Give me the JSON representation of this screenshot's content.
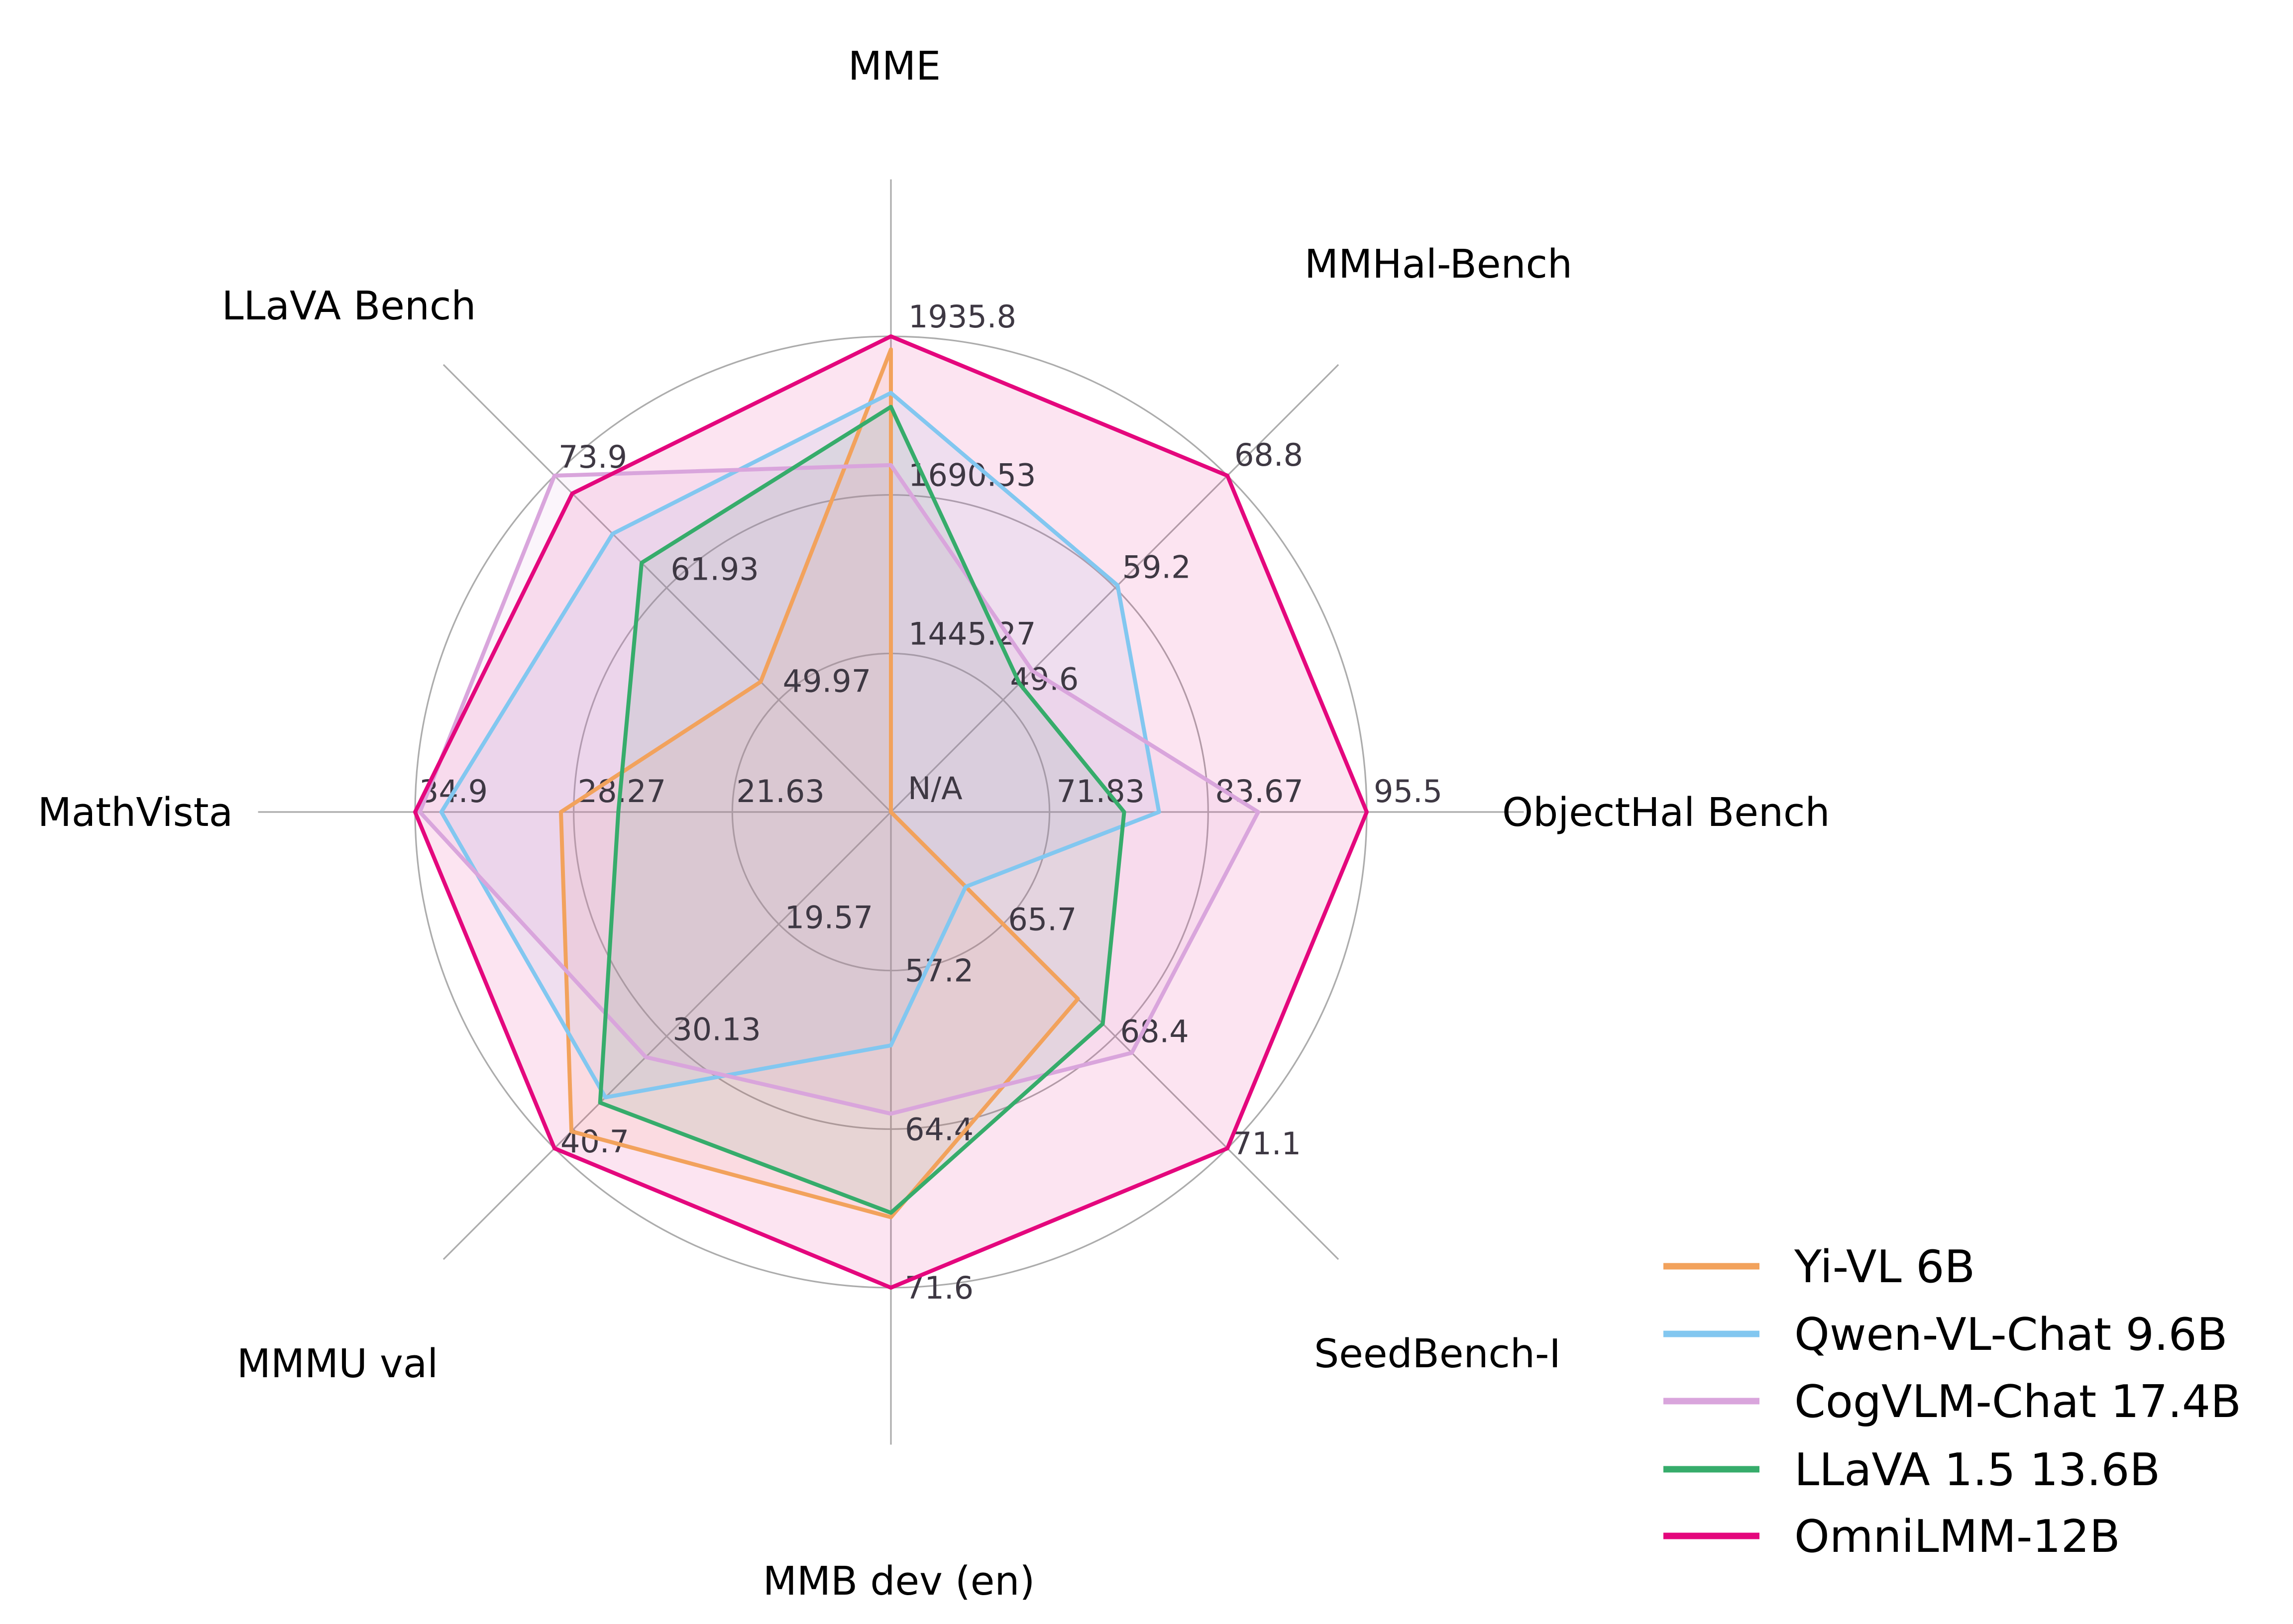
{
  "chart_data": {
    "type": "radar",
    "description": "Radar chart comparing multimodal LLM benchmark scores",
    "grid": true,
    "rings": 3,
    "ring_fractions": [
      0.33333,
      0.66667,
      1.0
    ],
    "legend_position": "lower right",
    "axes": [
      {
        "label": "MME",
        "min": 1200,
        "max": 1935.8,
        "ticks": [
          "1445.27",
          "1690.53",
          "1935.8"
        ],
        "center_label": "N/A"
      },
      {
        "label": "MMHal-Bench",
        "min": 40,
        "max": 68.8,
        "ticks": [
          "49.6",
          "59.2",
          "68.8"
        ]
      },
      {
        "label": "ObjectHal Bench",
        "min": 60,
        "max": 95.5,
        "ticks": [
          "71.83",
          "83.67",
          "95.5"
        ]
      },
      {
        "label": "SeedBench-I",
        "min": 63,
        "max": 71.1,
        "ticks": [
          "65.7",
          "68.4",
          "71.1"
        ]
      },
      {
        "label": "MMB dev (en)",
        "min": 50,
        "max": 71.6,
        "ticks": [
          "57.2",
          "64.4",
          "71.6"
        ]
      },
      {
        "label": "MMMU val",
        "min": 9,
        "max": 40.7,
        "ticks": [
          "19.57",
          "30.13",
          "40.7"
        ]
      },
      {
        "label": "MathVista",
        "min": 15,
        "max": 34.9,
        "ticks": [
          "21.63",
          "28.27",
          "34.9"
        ]
      },
      {
        "label": "LLaVA Bench",
        "min": 38,
        "max": 73.9,
        "ticks": [
          "49.97",
          "61.93",
          "73.9"
        ]
      }
    ],
    "series": [
      {
        "name": "Yi-VL 6B",
        "color": "#F2A25C",
        "values": [
          1915.6,
          null,
          null,
          67.5,
          68.4,
          39.1,
          28.8,
          51.9
        ]
      },
      {
        "name": "Qwen-VL-Chat 9.6B",
        "color": "#82C7F0",
        "values": [
          1848.3,
          59.4,
          80.0,
          64.8,
          60.6,
          35.9,
          33.8,
          67.7
        ]
      },
      {
        "name": "CogVLM-Chat 17.4B",
        "color": "#D9A5DC",
        "values": [
          1736.6,
          52.1,
          87.4,
          68.8,
          63.7,
          32.1,
          34.7,
          73.9
        ]
      },
      {
        "name": "LLaVA 1.5 13.6B",
        "color": "#36AC6B",
        "values": [
          1826.7,
          51.0,
          77.4,
          68.1,
          68.2,
          36.4,
          26.4,
          64.6
        ]
      },
      {
        "name": "OmniLMM-12B",
        "color": "#E4077D",
        "values": [
          1935.8,
          68.8,
          95.5,
          71.1,
          71.6,
          40.7,
          34.9,
          72.0
        ]
      }
    ]
  },
  "styles": {
    "background": "#ffffff",
    "grid_color": "#acacac",
    "tick_color": "#3e3843",
    "title_color": "#000000"
  }
}
